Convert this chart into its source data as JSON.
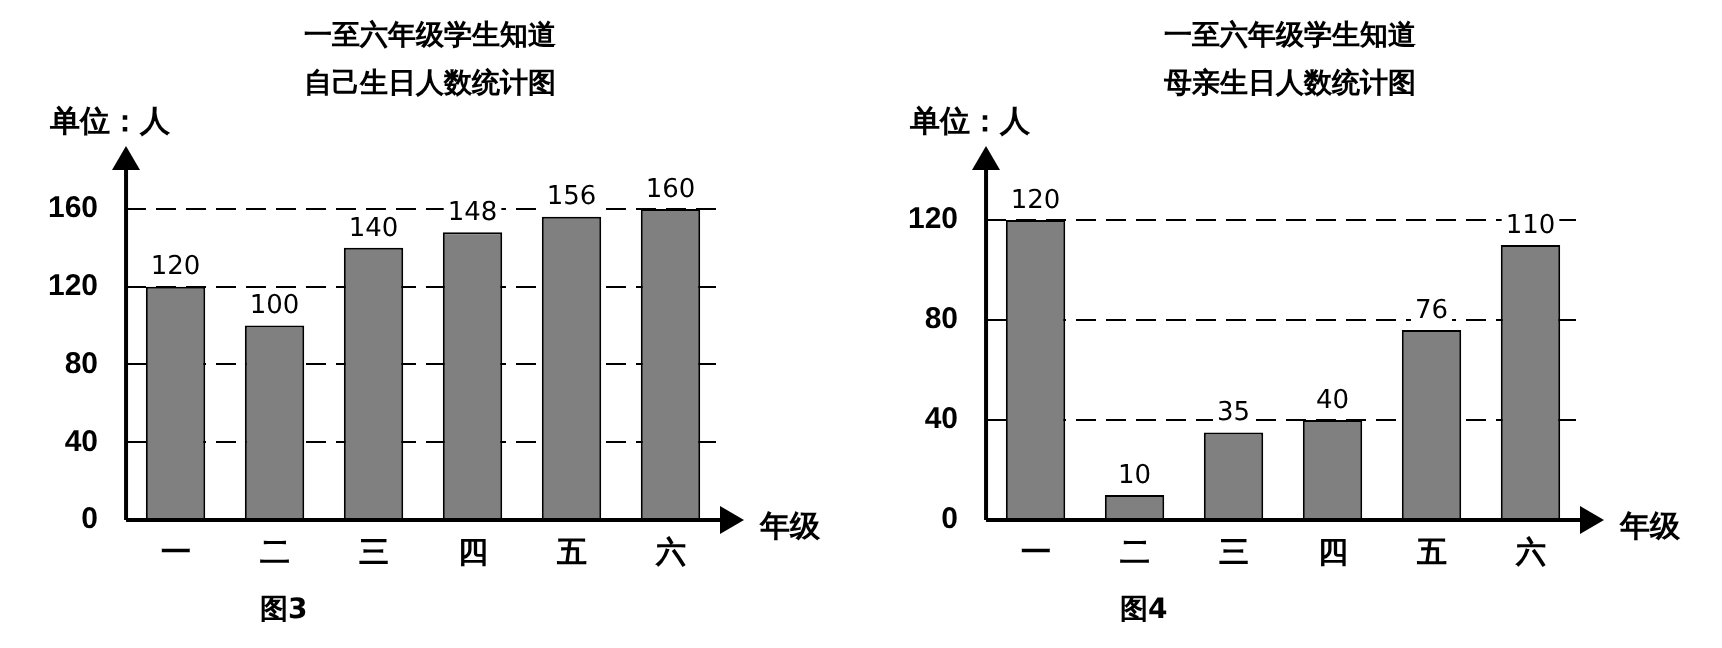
{
  "chart_data": [
    {
      "type": "bar",
      "title": "一至六年级学生知道自己生日人数统计图",
      "ylabel": "单位：人",
      "xlabel": "年级",
      "categories": [
        "一",
        "二",
        "三",
        "四",
        "五",
        "六"
      ],
      "values": [
        120,
        100,
        140,
        148,
        156,
        160
      ],
      "color": "#808080",
      "ylim": [
        0,
        180
      ],
      "yticks": [
        0,
        40,
        80,
        120,
        160
      ],
      "grid": "y",
      "data_labels": true,
      "annotations": [
        "图3"
      ]
    },
    {
      "type": "bar",
      "title": "一至六年级学生知道母亲生日人数统计图",
      "ylabel": "单位：人",
      "xlabel": "年级",
      "categories": [
        "一",
        "二",
        "三",
        "四",
        "五",
        "六"
      ],
      "values": [
        120,
        10,
        35,
        40,
        76,
        110
      ],
      "color": "#808080",
      "ylim": [
        0,
        140
      ],
      "yticks": [
        0,
        40,
        80,
        120
      ],
      "grid": "y",
      "data_labels": true,
      "annotations": [
        "图4"
      ]
    }
  ]
}
